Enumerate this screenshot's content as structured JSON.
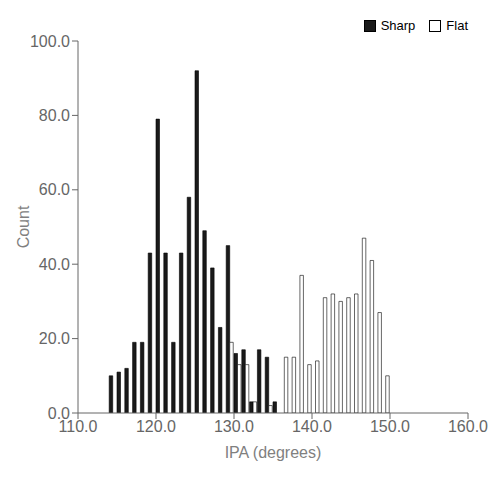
{
  "chart_data": {
    "type": "bar",
    "title": "",
    "xlabel": "IPA (degrees)",
    "ylabel": "Count",
    "x": [
      114.5,
      115.5,
      116.5,
      117.5,
      118.5,
      119.5,
      120.5,
      121.5,
      122.5,
      123.5,
      124.5,
      125.5,
      126.5,
      127.5,
      128.5,
      129.5,
      130.5,
      131.5,
      132.5,
      133.5,
      134.5,
      135.5,
      136.5,
      137.5,
      138.5,
      139.5,
      140.5,
      141.5,
      142.5,
      143.5,
      144.5,
      145.5,
      146.5,
      147.5,
      148.5,
      149.5
    ],
    "series": [
      {
        "name": "Sharp",
        "color": "#1a1a1a",
        "values": [
          10,
          11,
          12,
          19,
          19,
          43,
          79,
          43,
          19,
          43,
          58,
          92,
          49,
          39,
          23,
          45,
          16,
          17,
          3,
          17,
          15,
          3,
          null,
          null,
          null,
          null,
          null,
          null,
          null,
          null,
          null,
          null,
          null,
          null,
          null,
          null
        ]
      },
      {
        "name": "Flat",
        "color": "#ffffff",
        "values": [
          null,
          null,
          null,
          null,
          null,
          null,
          null,
          null,
          null,
          null,
          null,
          null,
          null,
          null,
          null,
          19,
          13,
          13,
          3,
          null,
          2,
          null,
          15,
          15,
          37,
          13,
          14,
          31,
          32,
          30,
          31,
          32,
          47,
          41,
          27,
          10
        ]
      }
    ],
    "xlim": [
      110.0,
      160.0
    ],
    "ylim": [
      0.0,
      100.0
    ],
    "xticks": [
      {
        "value": 110,
        "label": "110.0"
      },
      {
        "value": 120,
        "label": "120.0"
      },
      {
        "value": 130,
        "label": "130.0"
      },
      {
        "value": 140,
        "label": "140.0"
      },
      {
        "value": 150,
        "label": "150.0"
      },
      {
        "value": 160,
        "label": "160.0"
      }
    ],
    "yticks": [
      {
        "value": 0,
        "label": "0.0"
      },
      {
        "value": 20,
        "label": "20.0"
      },
      {
        "value": 40,
        "label": "40.0"
      },
      {
        "value": 60,
        "label": "60.0"
      },
      {
        "value": 80,
        "label": "80.0"
      },
      {
        "value": 100,
        "label": "100.0"
      }
    ],
    "grid": false,
    "legend": "upper right"
  }
}
